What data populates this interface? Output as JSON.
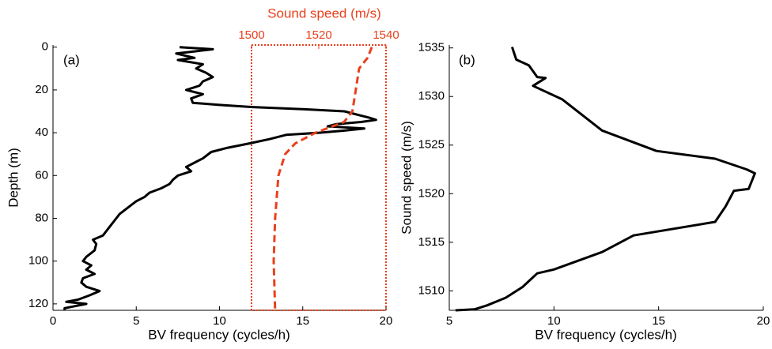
{
  "chart_data": [
    {
      "type": "line",
      "panel_label": "(a)",
      "x_label": "BV frequency (cycles/h)",
      "y_label": "Depth (m)",
      "x2_label": "Sound speed (m/s)",
      "xlim": [
        0,
        20
      ],
      "xticks": [
        0,
        5,
        10,
        15,
        20
      ],
      "ylim": [
        -1,
        123
      ],
      "yticks": [
        0,
        20,
        40,
        60,
        80,
        100,
        120
      ],
      "y_inverted": true,
      "x2lim": [
        1500,
        1540
      ],
      "x2ticks": [
        1500,
        1520,
        1540
      ],
      "series": [
        {
          "color": "#000000",
          "x": [
            7.6,
            9.6,
            8.5,
            7.4,
            8.5,
            7.5,
            9.0,
            8.6,
            9.2,
            9.6,
            9.0,
            8.8,
            8.0,
            9.0,
            8.3,
            8.4,
            10,
            12,
            15,
            17.5,
            18.5,
            19.0,
            19.4,
            18.5,
            17.0,
            16.5,
            18.7,
            17.5,
            16.0,
            14.0,
            13.0,
            11.8,
            10.5,
            9.5,
            9.0,
            8.5,
            8.0,
            8.3,
            7.5,
            7.2,
            7.0,
            6.5,
            5.8,
            5.5,
            5.0,
            4.5,
            4.0,
            3.8,
            3.5,
            3.2,
            3.0,
            2.4,
            2.6,
            2.5,
            2.0,
            1.8,
            2.3,
            2.0,
            2.5,
            1.8,
            1.7,
            2.0,
            2.8,
            2.2,
            1.5,
            0.8,
            2.0,
            0.7,
            0.7
          ],
          "y": [
            0,
            1,
            2,
            3,
            5,
            6,
            8,
            10,
            12,
            14,
            16,
            18,
            20,
            22,
            24,
            26,
            27,
            28,
            29,
            30,
            32,
            33,
            34,
            35,
            36,
            37,
            38,
            39,
            40,
            41,
            43,
            45,
            47,
            49,
            52,
            54,
            56,
            58,
            60,
            62,
            64,
            66,
            68,
            70,
            72,
            75,
            78,
            80,
            83,
            86,
            88,
            90,
            92,
            95,
            98,
            100,
            102,
            104,
            106,
            108,
            110,
            112,
            114,
            116,
            118,
            119,
            120,
            122,
            123
          ]
        },
        {
          "color": "#e8401c",
          "axis": "x2",
          "dashed": true,
          "x": [
            1535.8,
            1534.5,
            1532,
            1531,
            1530,
            1527.5,
            1519,
            1513,
            1510,
            1508,
            1507,
            1506.6,
            1507
          ],
          "y": [
            0,
            5,
            10,
            20,
            30,
            35,
            40,
            45,
            50,
            60,
            80,
            100,
            123
          ]
        }
      ]
    },
    {
      "type": "line",
      "panel_label": "(b)",
      "x_label": "BV frequency (cycles/h)",
      "y_label": "Sound speed (m/s)",
      "xlim": [
        5,
        20
      ],
      "xticks": [
        5,
        10,
        15,
        20
      ],
      "ylim": [
        1508,
        1535.3
      ],
      "yticks": [
        1510,
        1515,
        1520,
        1525,
        1530,
        1535
      ],
      "series": [
        {
          "color": "#000000",
          "x": [
            8.0,
            8.2,
            8.8,
            9.2,
            9.6,
            9.0,
            9.2,
            10.4,
            12.3,
            14.9,
            17.7,
            19.2,
            19.6,
            19.3,
            18.6,
            18.2,
            17.7,
            13.8,
            12.3,
            10.0,
            9.2,
            8.5,
            7.7,
            6.8,
            6.2,
            5.3
          ],
          "y": [
            1535.1,
            1533.8,
            1533.2,
            1532,
            1531.9,
            1531.1,
            1530.9,
            1529.7,
            1526.5,
            1524.4,
            1523.6,
            1522.5,
            1522.1,
            1520.5,
            1520.3,
            1518.7,
            1517.1,
            1515.7,
            1514,
            1512.2,
            1511.8,
            1510.4,
            1509.3,
            1508.5,
            1508.1,
            1508
          ]
        }
      ]
    }
  ]
}
